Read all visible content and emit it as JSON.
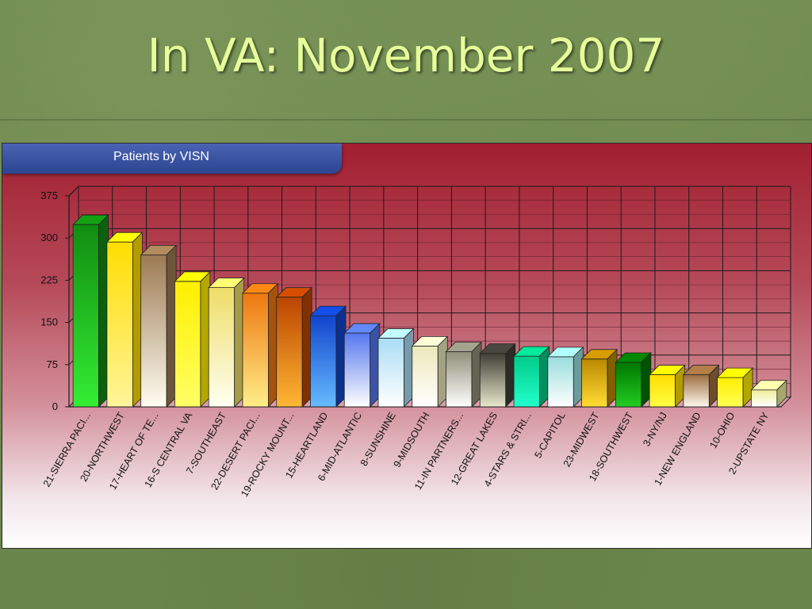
{
  "slide": {
    "title": "In VA:  November 2007"
  },
  "colors": {
    "background": "#6e8a4e",
    "title": "#e6ff9a",
    "panel_tab": "#2c4590"
  },
  "chart_data": {
    "type": "bar",
    "title": "Patients by VISN",
    "xlabel": "",
    "ylabel": "",
    "ylim": [
      0,
      375
    ],
    "yticks": [
      0,
      75,
      150,
      225,
      300,
      375
    ],
    "grid": true,
    "legend": "none",
    "categories": [
      "21-SIERRA PACI...",
      "20-NORTHWEST",
      "17-HEART OF TE...",
      "16-S CENTRAL VA",
      "7-SOUTHEAST",
      "22-DESERT PACI...",
      "19-ROCKY MOUNT...",
      "15-HEARTLAND",
      "6-MID-ATLANTIC",
      "8-SUNSHINE",
      "9-MIDSOUTH",
      "11-IN PARTNERS...",
      "12-GREAT LAKES",
      "4-STARS & STRI...",
      "5-CAPITOL",
      "23-MIDWEST",
      "18-SOUTHWEST",
      "3-NY/NJ",
      "1-NEW ENGLAND",
      "10-OHIO",
      "2-UPSTATE NY"
    ],
    "values": [
      324,
      293,
      270,
      223,
      212,
      202,
      195,
      162,
      131,
      122,
      108,
      98,
      95,
      90,
      89,
      85,
      79,
      57,
      57,
      52,
      30
    ],
    "colors": [
      [
        "#118c11",
        "#33ee33"
      ],
      [
        "#ffdd00",
        "#fff59a"
      ],
      [
        "#9c7a52",
        "#fffdf2"
      ],
      [
        "#ffef00",
        "#ffff66"
      ],
      [
        "#eedd66",
        "#fffff2"
      ],
      [
        "#ee7711",
        "#ffee88"
      ],
      [
        "#bb4400",
        "#ffb733"
      ],
      [
        "#1144cc",
        "#66bbff"
      ],
      [
        "#5577ee",
        "#ffffff"
      ],
      [
        "#aaddf5",
        "#ffffff"
      ],
      [
        "#ece8bb",
        "#ffffff"
      ],
      [
        "#8f8f7a",
        "#ffffff"
      ],
      [
        "#3f3f36",
        "#e8e8cc"
      ],
      [
        "#00cc88",
        "#22ffcc"
      ],
      [
        "#99dddd",
        "#ffffff"
      ],
      [
        "#bb8800",
        "#ffdd33"
      ],
      [
        "#007700",
        "#22cc22"
      ],
      [
        "#ffdd00",
        "#ffff44"
      ],
      [
        "#9c6e3f",
        "#fff8ee"
      ],
      [
        "#ffee00",
        "#ffff55"
      ],
      [
        "#eeee99",
        "#ffffff"
      ]
    ]
  }
}
